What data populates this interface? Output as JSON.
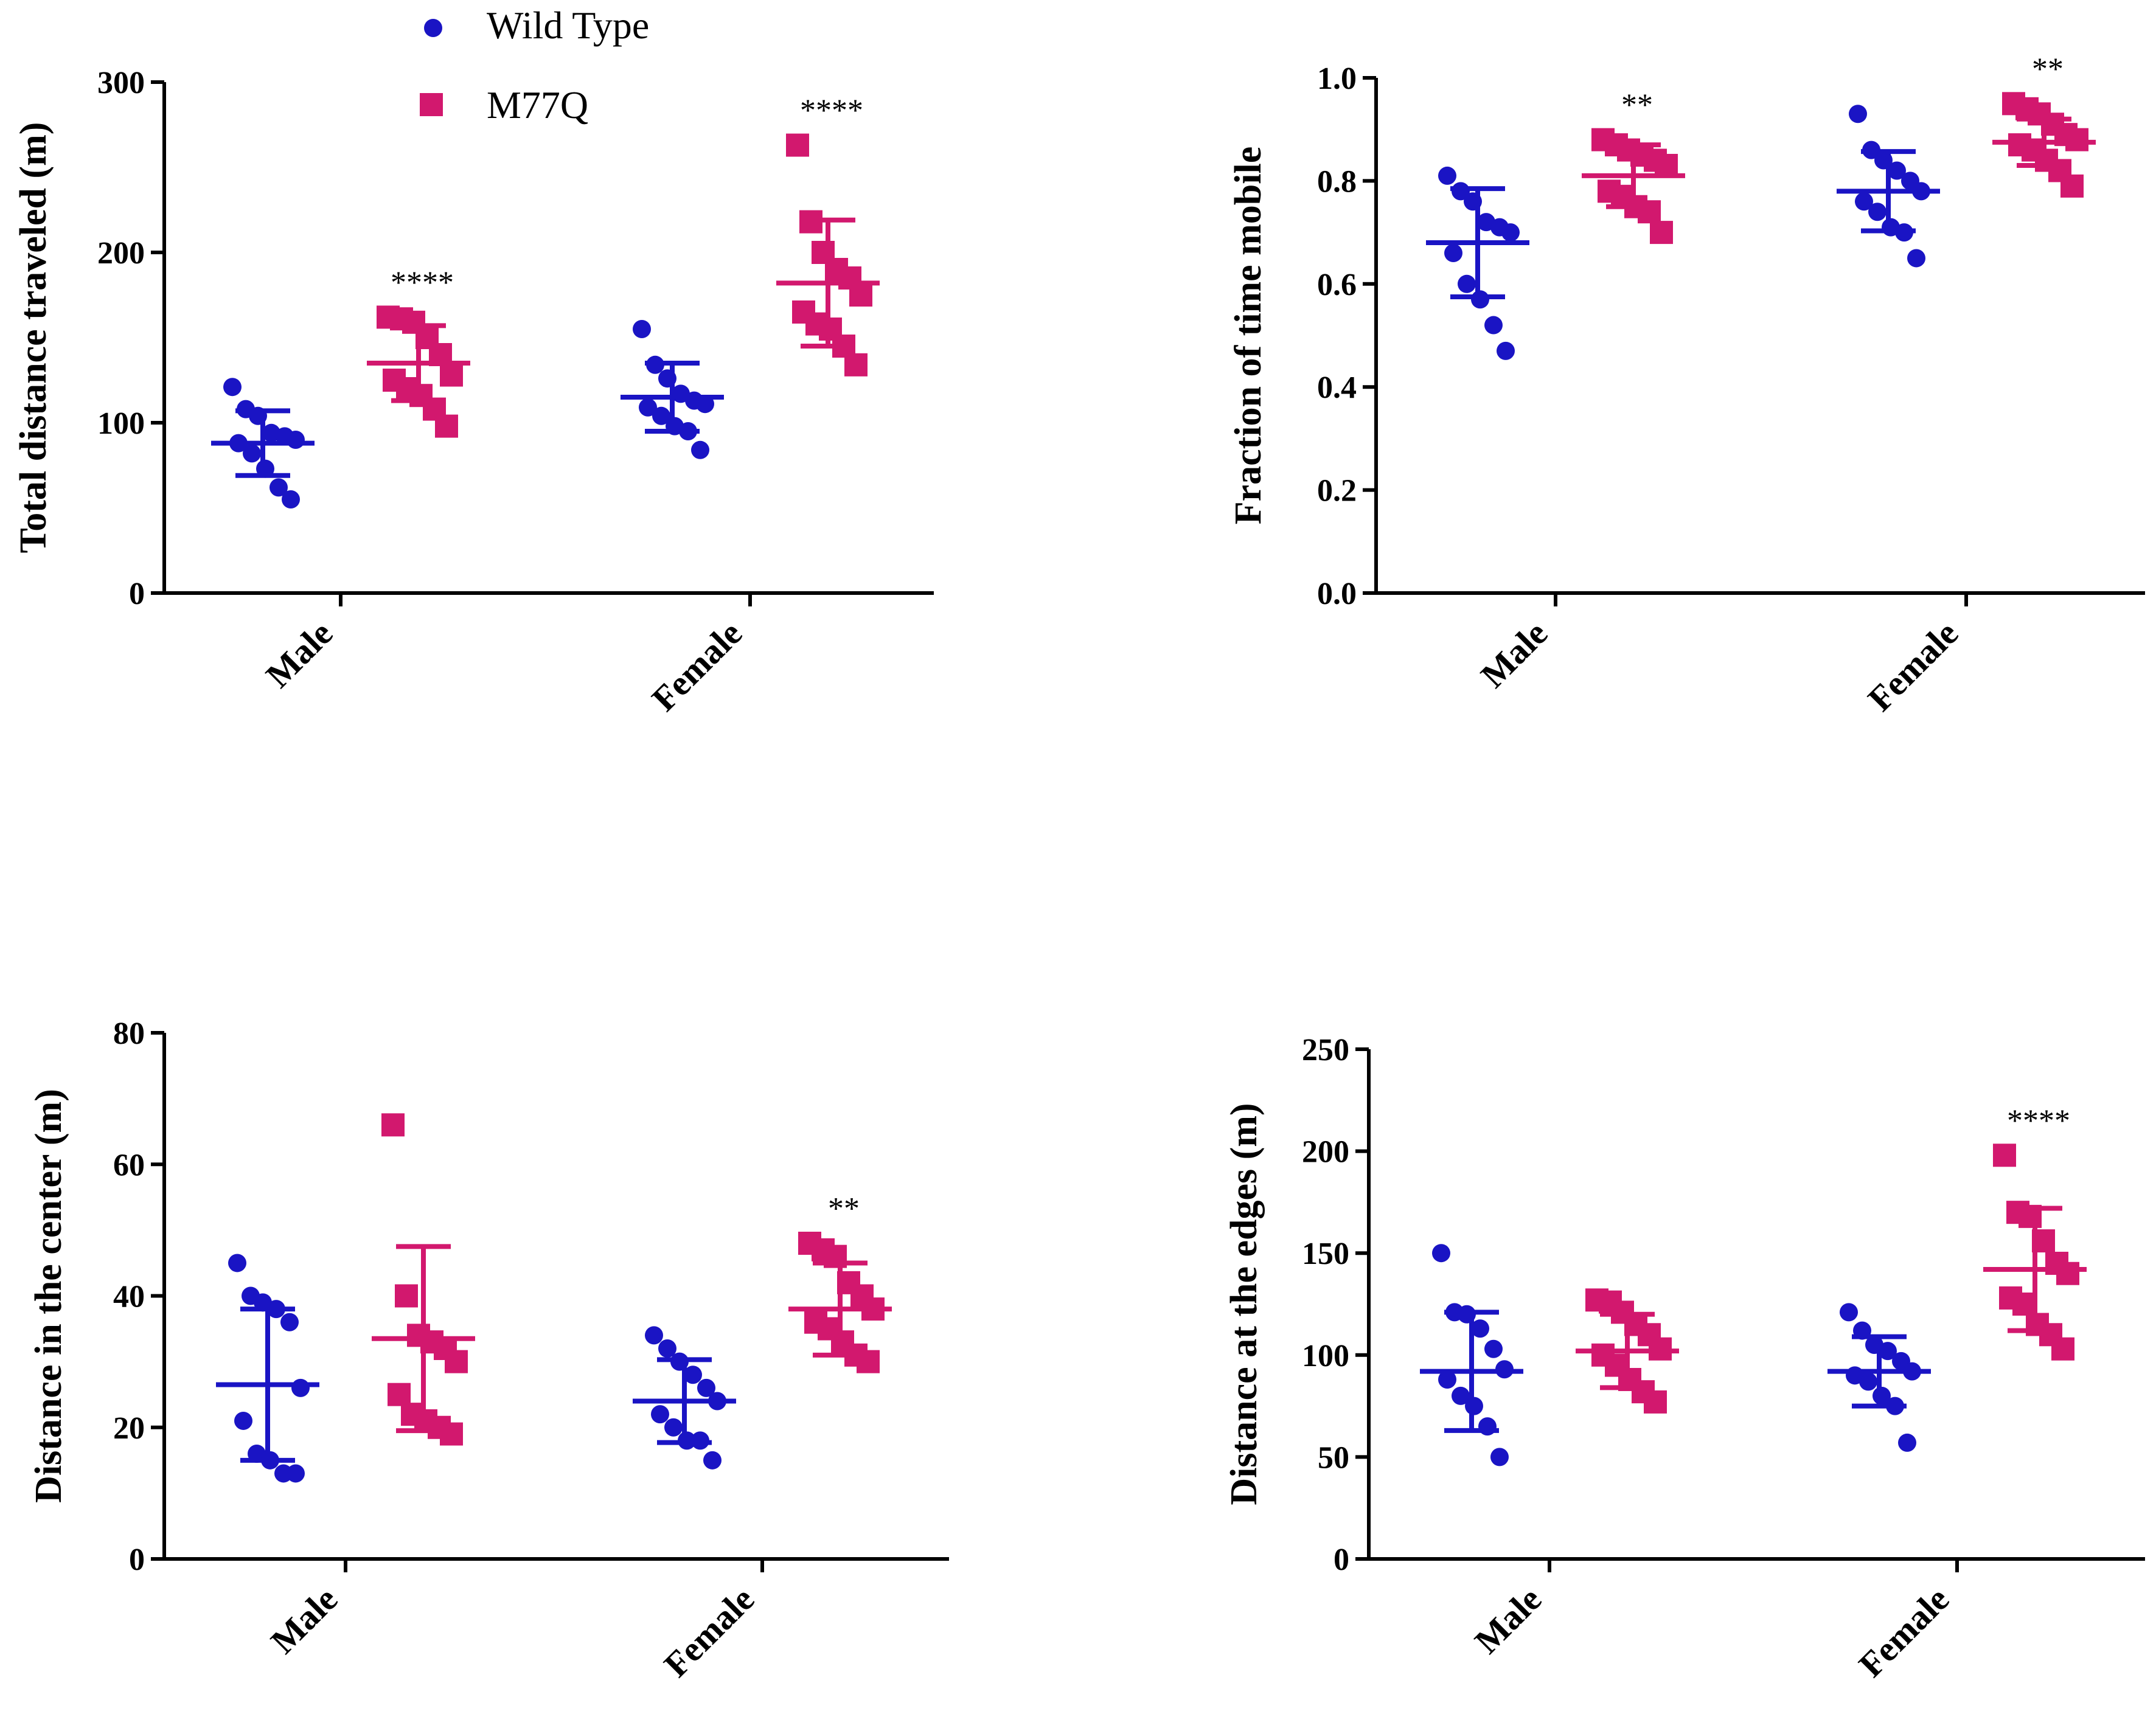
{
  "colors": {
    "wild_type": "#1a14c4",
    "m77q": "#d2186e",
    "axis": "#000000"
  },
  "legend": {
    "items": [
      {
        "label": "Wild Type",
        "marker": "circle",
        "color": "#1a14c4"
      },
      {
        "label": "M77Q",
        "marker": "square",
        "color": "#d2186e"
      }
    ]
  },
  "chart_data": [
    {
      "type": "scatter",
      "panel": "top-left",
      "ylabel": "Total distance traveled (m)",
      "ylim": [
        0,
        300
      ],
      "yticks": [
        0,
        100,
        200,
        300
      ],
      "categories": [
        "Male",
        "Female"
      ],
      "series": [
        {
          "name": "Wild Type",
          "groups": [
            {
              "category": "Male",
              "mean": 88,
              "sd": 19,
              "points": [
                121,
                108,
                104,
                94,
                92,
                90,
                88,
                82,
                73,
                62,
                55
              ],
              "significance": ""
            },
            {
              "category": "Female",
              "mean": 115,
              "sd": 20,
              "points": [
                155,
                134,
                126,
                117,
                113,
                111,
                109,
                104,
                98,
                95,
                84
              ],
              "significance": ""
            }
          ]
        },
        {
          "name": "M77Q",
          "groups": [
            {
              "category": "Male",
              "mean": 135,
              "sd": 22,
              "points": [
                162,
                161,
                159,
                150,
                140,
                128,
                125,
                120,
                116,
                108,
                98
              ],
              "significance": "****"
            },
            {
              "category": "Female",
              "mean": 182,
              "sd": 37,
              "points": [
                263,
                218,
                200,
                190,
                185,
                175,
                165,
                158,
                155,
                145,
                134
              ],
              "significance": "****"
            }
          ]
        }
      ]
    },
    {
      "type": "scatter",
      "panel": "top-right",
      "ylabel": "Fraction of time mobile",
      "ylim": [
        0,
        1
      ],
      "yticks": [
        0.0,
        0.2,
        0.4,
        0.6,
        0.8,
        1.0
      ],
      "categories": [
        "Male",
        "Female"
      ],
      "series": [
        {
          "name": "Wild Type",
          "groups": [
            {
              "category": "Male",
              "mean": 0.68,
              "sd": 0.105,
              "points": [
                0.81,
                0.78,
                0.76,
                0.72,
                0.71,
                0.7,
                0.66,
                0.6,
                0.57,
                0.52,
                0.47
              ],
              "significance": ""
            },
            {
              "category": "Female",
              "mean": 0.78,
              "sd": 0.077,
              "points": [
                0.93,
                0.86,
                0.84,
                0.82,
                0.8,
                0.78,
                0.76,
                0.74,
                0.71,
                0.7,
                0.65
              ],
              "significance": ""
            }
          ]
        },
        {
          "name": "M77Q",
          "groups": [
            {
              "category": "Male",
              "mean": 0.81,
              "sd": 0.06,
              "points": [
                0.88,
                0.87,
                0.86,
                0.85,
                0.84,
                0.83,
                0.78,
                0.77,
                0.75,
                0.74,
                0.7
              ],
              "significance": "**"
            },
            {
              "category": "Female",
              "mean": 0.875,
              "sd": 0.045,
              "points": [
                0.95,
                0.94,
                0.93,
                0.91,
                0.89,
                0.88,
                0.87,
                0.86,
                0.84,
                0.82,
                0.79
              ],
              "significance": "**"
            }
          ]
        }
      ]
    },
    {
      "type": "scatter",
      "panel": "bottom-left",
      "ylabel": "Distance in the center (m)",
      "ylim": [
        0,
        80
      ],
      "yticks": [
        0,
        20,
        40,
        60,
        80
      ],
      "categories": [
        "Male",
        "Female"
      ],
      "series": [
        {
          "name": "Wild Type",
          "groups": [
            {
              "category": "Male",
              "mean": 26.5,
              "sd": 11.5,
              "points": [
                45,
                40,
                39,
                38,
                36,
                26,
                21,
                16,
                15,
                13,
                13
              ],
              "significance": ""
            },
            {
              "category": "Female",
              "mean": 24,
              "sd": 6.3,
              "points": [
                34,
                32,
                30,
                28,
                26,
                24,
                22,
                20,
                18,
                18,
                15
              ],
              "significance": ""
            }
          ]
        },
        {
          "name": "M77Q",
          "groups": [
            {
              "category": "Male",
              "mean": 33.5,
              "sd": 14,
              "points": [
                66,
                40,
                34,
                33,
                32,
                30,
                25,
                22,
                21,
                20,
                19
              ],
              "significance": ""
            },
            {
              "category": "Female",
              "mean": 38,
              "sd": 7,
              "points": [
                48,
                47,
                46,
                42,
                40,
                38,
                36,
                35,
                33,
                31,
                30
              ],
              "significance": "**"
            }
          ]
        }
      ]
    },
    {
      "type": "scatter",
      "panel": "bottom-right",
      "ylabel": "Distance at the edges (m)",
      "ylim": [
        0,
        250
      ],
      "yticks": [
        0,
        50,
        100,
        150,
        200,
        250
      ],
      "categories": [
        "Male",
        "Female"
      ],
      "series": [
        {
          "name": "Wild Type",
          "groups": [
            {
              "category": "Male",
              "mean": 92,
              "sd": 29,
              "points": [
                150,
                121,
                120,
                113,
                103,
                93,
                88,
                80,
                75,
                65,
                50
              ],
              "significance": ""
            },
            {
              "category": "Female",
              "mean": 92,
              "sd": 17,
              "points": [
                121,
                112,
                105,
                102,
                97,
                92,
                90,
                87,
                80,
                75,
                57
              ],
              "significance": ""
            }
          ]
        },
        {
          "name": "M77Q",
          "groups": [
            {
              "category": "Male",
              "mean": 102,
              "sd": 18,
              "points": [
                127,
                126,
                121,
                115,
                110,
                103,
                100,
                95,
                88,
                82,
                77
              ],
              "significance": ""
            },
            {
              "category": "Female",
              "mean": 142,
              "sd": 30,
              "points": [
                198,
                170,
                168,
                156,
                145,
                140,
                128,
                125,
                115,
                110,
                103
              ],
              "significance": "****"
            }
          ]
        }
      ]
    }
  ]
}
